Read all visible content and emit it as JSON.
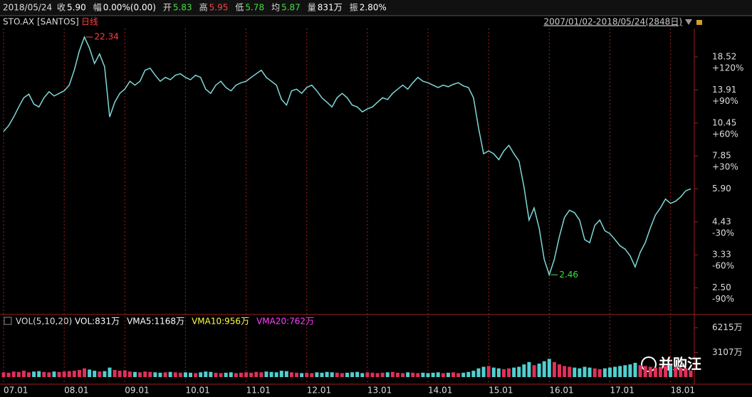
{
  "header": {
    "date": "2018/05/24",
    "items": [
      {
        "label": "收",
        "value": "5.90",
        "color": "#ffffff"
      },
      {
        "label": "幅",
        "value": "0.00%(0.00)",
        "color": "#ffffff"
      },
      {
        "label": "开",
        "value": "5.83",
        "color": "#40e040"
      },
      {
        "label": "高",
        "value": "5.95",
        "color": "#ff4040"
      },
      {
        "label": "低",
        "value": "5.78",
        "color": "#40e040"
      },
      {
        "label": "均",
        "value": "5.87",
        "color": "#40e040"
      },
      {
        "label": "量",
        "value": "831万",
        "color": "#ffffff"
      },
      {
        "label": "振",
        "value": "2.80%",
        "color": "#ffffff"
      }
    ]
  },
  "chart_data": [
    {
      "type": "line",
      "title": "STO.AX [SANTOS]",
      "subtitle": "日线",
      "range_label": "2007/01/02-2018/05/24(2848日)",
      "log_scale": true,
      "ylim": [
        2.01,
        23.7
      ],
      "yticks": [
        {
          "value": 18.52,
          "label": "18.52"
        },
        {
          "value": 13.91,
          "label": "13.91"
        },
        {
          "value": 10.45,
          "label": "10.45"
        },
        {
          "value": 7.85,
          "label": "7.85"
        },
        {
          "value": 5.9,
          "label": "5.90"
        },
        {
          "value": 4.43,
          "label": "4.43"
        },
        {
          "value": 3.33,
          "label": "3.33"
        },
        {
          "value": 2.5,
          "label": "2.50"
        }
      ],
      "pct_labels": [
        "+120%",
        "+90%",
        "+60%",
        "+30%",
        null,
        "-30%",
        "-60%",
        "-90%"
      ],
      "annotations": [
        {
          "text": "22.34",
          "color": "#ff4040",
          "at": "max"
        },
        {
          "text": "2.46",
          "color": "#40e040",
          "at": "min"
        }
      ],
      "categories": [
        "07.01",
        null,
        null,
        null,
        null,
        null,
        null,
        null,
        null,
        null,
        null,
        null,
        "08.01",
        null,
        null,
        null,
        null,
        null,
        null,
        null,
        null,
        null,
        null,
        null,
        "09.01",
        null,
        null,
        null,
        null,
        null,
        null,
        null,
        null,
        null,
        null,
        null,
        "10.01",
        null,
        null,
        null,
        null,
        null,
        null,
        null,
        null,
        null,
        null,
        null,
        "11.01",
        null,
        null,
        null,
        null,
        null,
        null,
        null,
        null,
        null,
        null,
        null,
        "12.01",
        null,
        null,
        null,
        null,
        null,
        null,
        null,
        null,
        null,
        null,
        null,
        "13.01",
        null,
        null,
        null,
        null,
        null,
        null,
        null,
        null,
        null,
        null,
        null,
        "14.01",
        null,
        null,
        null,
        null,
        null,
        null,
        null,
        null,
        null,
        null,
        null,
        "15.01",
        null,
        null,
        null,
        null,
        null,
        null,
        null,
        null,
        null,
        null,
        null,
        "16.01",
        null,
        null,
        null,
        null,
        null,
        null,
        null,
        null,
        null,
        null,
        null,
        "17.01",
        null,
        null,
        null,
        null,
        null,
        null,
        null,
        null,
        null,
        null,
        null,
        "18.01",
        null,
        null,
        null,
        null
      ],
      "series": [
        {
          "name": "SANTOS",
          "color": "#7fd8d8",
          "values": [
            9.7,
            10.2,
            11.0,
            12.0,
            13.0,
            13.4,
            12.3,
            12.0,
            13.0,
            13.7,
            13.2,
            13.5,
            13.8,
            14.5,
            16.5,
            19.5,
            22.0,
            20.0,
            17.5,
            19.0,
            17.0,
            11.0,
            12.5,
            13.5,
            14.0,
            15.0,
            14.5,
            15.0,
            16.5,
            16.8,
            15.8,
            15.0,
            15.5,
            15.2,
            15.8,
            16.0,
            15.5,
            15.2,
            15.8,
            15.5,
            14.0,
            13.5,
            14.5,
            15.0,
            14.2,
            13.8,
            14.5,
            14.8,
            15.0,
            15.5,
            16.0,
            16.5,
            15.5,
            15.0,
            14.5,
            12.8,
            12.2,
            13.8,
            14.0,
            13.5,
            14.2,
            14.5,
            13.8,
            13.0,
            12.5,
            12.0,
            13.0,
            13.5,
            13.0,
            12.2,
            12.0,
            11.5,
            11.8,
            12.0,
            12.5,
            13.0,
            12.8,
            13.5,
            14.0,
            14.5,
            14.0,
            14.8,
            15.5,
            15.0,
            14.8,
            14.5,
            14.2,
            14.5,
            14.3,
            14.6,
            14.8,
            14.4,
            14.2,
            13.0,
            10.0,
            8.0,
            8.2,
            8.0,
            7.6,
            8.2,
            8.6,
            8.0,
            7.5,
            6.0,
            4.5,
            5.0,
            4.2,
            3.2,
            2.8,
            3.2,
            3.9,
            4.6,
            4.9,
            4.8,
            4.5,
            3.8,
            3.7,
            4.3,
            4.5,
            4.1,
            4.0,
            3.8,
            3.6,
            3.5,
            3.3,
            3.0,
            3.4,
            3.7,
            4.2,
            4.7,
            5.0,
            5.4,
            5.2,
            5.3,
            5.5,
            5.8,
            5.9
          ]
        }
      ]
    },
    {
      "type": "bar",
      "title": "VOL(5,10,20)",
      "indicators": [
        {
          "text": "VOL:831万",
          "color": "#ffffff"
        },
        {
          "text": "VMA5:1168万",
          "color": "#ffffff"
        },
        {
          "text": "VMA10:956万",
          "color": "#ffff40"
        },
        {
          "text": "VMA20:762万",
          "color": "#ff40ff"
        }
      ],
      "ylim": [
        0,
        7000
      ],
      "yticks": [
        {
          "value": 6215,
          "label": "6215万"
        },
        {
          "value": 3107,
          "label": "3107万"
        }
      ],
      "up_color": "#e0305a",
      "down_color": "#50d0d0",
      "values": [
        600,
        550,
        700,
        650,
        800,
        600,
        700,
        750,
        650,
        600,
        700,
        650,
        700,
        750,
        800,
        900,
        1100,
        950,
        800,
        700,
        750,
        1200,
        900,
        800,
        850,
        700,
        650,
        600,
        700,
        650,
        600,
        550,
        600,
        650,
        600,
        550,
        600,
        550,
        500,
        600,
        700,
        650,
        550,
        500,
        550,
        600,
        500,
        550,
        600,
        550,
        650,
        600,
        700,
        650,
        600,
        800,
        750,
        600,
        550,
        500,
        550,
        500,
        600,
        550,
        650,
        600,
        550,
        500,
        550,
        600,
        650,
        500,
        600,
        550,
        500,
        550,
        600,
        650,
        550,
        500,
        600,
        550,
        500,
        550,
        500,
        550,
        600,
        500,
        550,
        600,
        500,
        550,
        650,
        800,
        1100,
        1300,
        1400,
        1200,
        1100,
        1000,
        1100,
        1200,
        1300,
        1600,
        1900,
        1500,
        1700,
        2000,
        2300,
        1900,
        1600,
        1400,
        1300,
        1200,
        1100,
        1300,
        1200,
        1100,
        1000,
        1100,
        1200,
        1300,
        1400,
        1500,
        1600,
        1800,
        1500,
        1400,
        1300,
        1200,
        1300,
        1400,
        1500,
        1300,
        1200,
        1100,
        831
      ]
    }
  ],
  "watermark": "并购汪"
}
